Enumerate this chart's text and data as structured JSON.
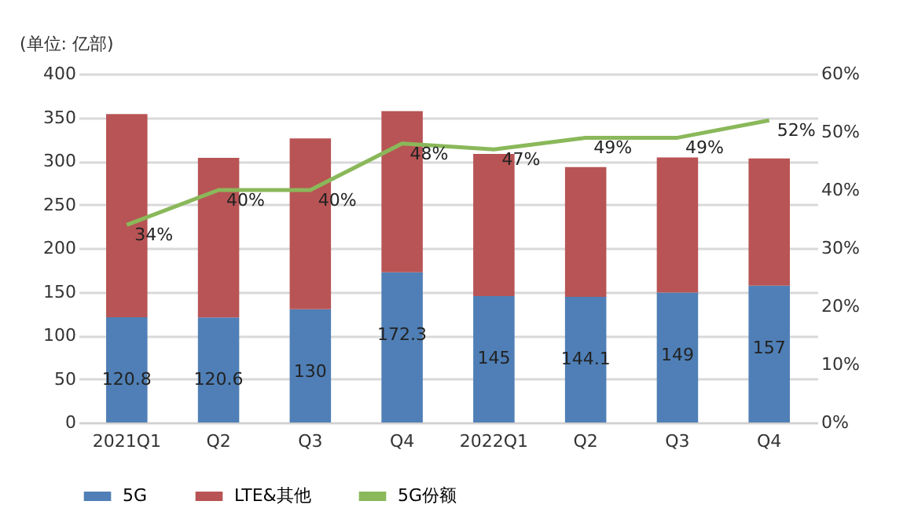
{
  "chart_data": {
    "type": "bar",
    "stacked": true,
    "ylabel": "(单位: 亿部)",
    "categories": [
      "2021Q1",
      "Q2",
      "Q3",
      "Q4",
      "2022Q1",
      "Q2",
      "Q3",
      "Q4"
    ],
    "series": [
      {
        "name": "5G",
        "color": "#4f7fb6",
        "values": [
          120.8,
          120.6,
          130,
          172.3,
          145,
          144.1,
          149,
          157
        ],
        "value_labels": [
          "120.8",
          "120.6",
          "130",
          "172.3",
          "145",
          "144.1",
          "149",
          "157"
        ]
      },
      {
        "name": "LTE&其他",
        "color": "#b85455",
        "values": [
          233,
          183,
          196,
          185,
          163,
          149,
          155,
          146
        ]
      },
      {
        "name": "5G份额",
        "type": "line",
        "axis": "y2",
        "color": "#8ab85a",
        "values": [
          34,
          40,
          40,
          48,
          47,
          49,
          49,
          52
        ],
        "value_labels": [
          "34%",
          "40%",
          "40%",
          "48%",
          "47%",
          "49%",
          "49%",
          "52%"
        ]
      }
    ],
    "ylim": [
      0,
      400
    ],
    "yticks": [
      0,
      50,
      100,
      150,
      200,
      250,
      300,
      350,
      400
    ],
    "y2lim": [
      0,
      60
    ],
    "y2ticks": [
      {
        "value": 0,
        "label": "0%"
      },
      {
        "value": 10,
        "label": "10%"
      },
      {
        "value": 20,
        "label": "20%"
      },
      {
        "value": 30,
        "label": "30%"
      },
      {
        "value": 40,
        "label": "40%"
      },
      {
        "value": 50,
        "label": "50%"
      },
      {
        "value": 60,
        "label": "60%"
      }
    ],
    "grid": "y",
    "legend": "bottom",
    "marker": "none",
    "line_style": "solid"
  }
}
